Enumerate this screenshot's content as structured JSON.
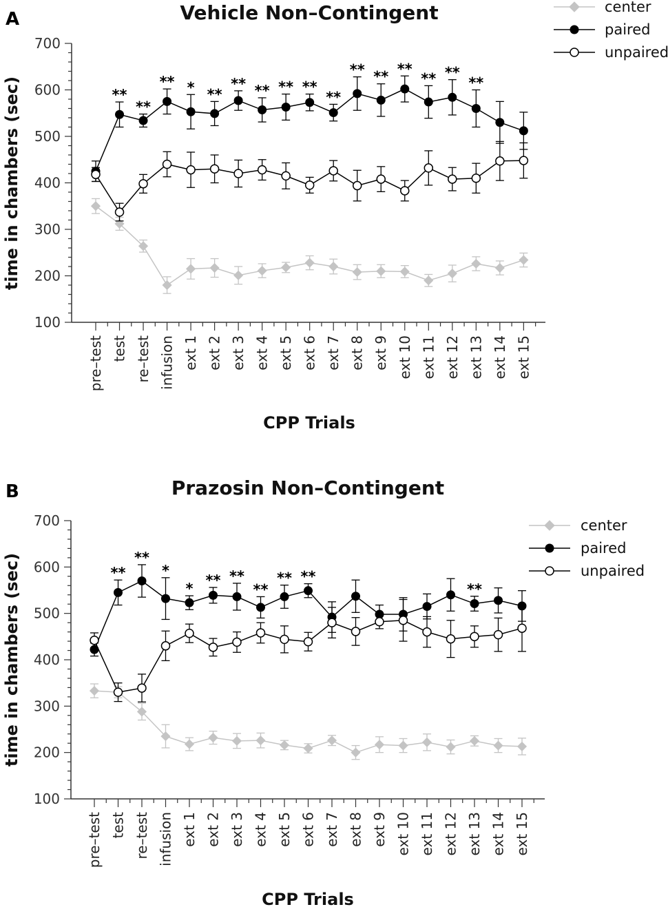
{
  "colors": {
    "center": "#c4c4c4",
    "paired": "#000000",
    "unpaired": "#000000",
    "axis": "#333333"
  },
  "chart_data": [
    {
      "panel": "A",
      "type": "line",
      "title": "Vehicle Non–Contingent",
      "xlabel": "CPP Trials",
      "ylabel": "time in chambers (sec)",
      "ylim": [
        100,
        700
      ],
      "yticks": [
        100,
        200,
        300,
        400,
        500,
        600,
        700
      ],
      "categories": [
        "pre–test",
        "test",
        "re–test",
        "infusion",
        "ext 1",
        "ext 2",
        "ext 3",
        "ext 4",
        "ext 5",
        "ext 6",
        "ext 7",
        "ext 8",
        "ext 9",
        "ext 10",
        "ext 11",
        "ext 12",
        "ext 13",
        "ext 14",
        "ext 15"
      ],
      "legend_position": "top-right",
      "series": [
        {
          "name": "center",
          "marker": "diamond",
          "values": [
            350,
            312,
            264,
            180,
            215,
            217,
            201,
            211,
            218,
            228,
            220,
            208,
            210,
            209,
            190,
            205,
            226,
            217,
            234
          ],
          "errors": [
            16,
            14,
            13,
            18,
            22,
            20,
            19,
            15,
            11,
            15,
            16,
            16,
            14,
            13,
            13,
            18,
            15,
            15,
            15
          ]
        },
        {
          "name": "paired",
          "marker": "filled-circle",
          "values": [
            425,
            547,
            534,
            575,
            553,
            549,
            577,
            557,
            563,
            573,
            551,
            592,
            578,
            602,
            574,
            584,
            560,
            530,
            512
          ],
          "errors": [
            22,
            27,
            14,
            27,
            37,
            26,
            21,
            26,
            28,
            18,
            18,
            36,
            35,
            28,
            35,
            38,
            40,
            45,
            40
          ]
        },
        {
          "name": "unpaired",
          "marker": "open-circle",
          "values": [
            418,
            337,
            398,
            440,
            428,
            430,
            420,
            428,
            415,
            395,
            426,
            394,
            408,
            383,
            432,
            408,
            410,
            447,
            448
          ],
          "errors": [
            15,
            19,
            20,
            27,
            38,
            30,
            29,
            22,
            28,
            17,
            22,
            33,
            27,
            22,
            37,
            25,
            32,
            42,
            38
          ]
        }
      ],
      "significance": [
        "",
        "**",
        "**",
        "**",
        "*",
        "**",
        "**",
        "**",
        "**",
        "**",
        "**",
        "**",
        "**",
        "**",
        "**",
        "**",
        "**",
        "",
        ""
      ]
    },
    {
      "panel": "B",
      "type": "line",
      "title": "Prazosin Non–Contingent",
      "xlabel": "CPP Trials",
      "ylabel": "time in chambers (sec)",
      "ylim": [
        100,
        700
      ],
      "yticks": [
        100,
        200,
        300,
        400,
        500,
        600,
        700
      ],
      "categories": [
        "pre–test",
        "test",
        "re–test",
        "infusion",
        "ext 1",
        "ext 2",
        "ext 3",
        "ext 4",
        "ext 5",
        "ext 6",
        "ext 7",
        "ext 8",
        "ext 9",
        "ext 10",
        "ext 11",
        "ext 12",
        "ext 13",
        "ext 14",
        "ext 15"
      ],
      "legend_position": "top-right",
      "series": [
        {
          "name": "center",
          "marker": "diamond",
          "values": [
            333,
            330,
            288,
            235,
            218,
            232,
            225,
            226,
            216,
            209,
            226,
            200,
            217,
            215,
            222,
            212,
            225,
            215,
            213
          ],
          "errors": [
            15,
            12,
            18,
            25,
            14,
            14,
            16,
            16,
            10,
            10,
            11,
            15,
            17,
            15,
            18,
            15,
            11,
            15,
            18
          ]
        },
        {
          "name": "paired",
          "marker": "filled-circle",
          "values": [
            422,
            545,
            570,
            532,
            523,
            539,
            536,
            513,
            536,
            549,
            492,
            537,
            498,
            498,
            515,
            540,
            521,
            528,
            516
          ],
          "errors": [
            14,
            27,
            35,
            45,
            15,
            17,
            29,
            23,
            25,
            15,
            33,
            35,
            20,
            36,
            27,
            35,
            16,
            27,
            33
          ]
        },
        {
          "name": "unpaired",
          "marker": "open-circle",
          "values": [
            442,
            330,
            339,
            430,
            457,
            427,
            438,
            458,
            444,
            439,
            480,
            461,
            482,
            485,
            460,
            445,
            450,
            454,
            468
          ],
          "errors": [
            16,
            20,
            30,
            32,
            20,
            19,
            22,
            22,
            29,
            20,
            33,
            30,
            15,
            45,
            33,
            40,
            23,
            36,
            50
          ]
        }
      ],
      "significance": [
        "",
        "**",
        "**",
        "*",
        "*",
        "**",
        "**",
        "**",
        "**",
        "**",
        "",
        "",
        "",
        "",
        "",
        "",
        "**",
        "",
        ""
      ]
    }
  ]
}
